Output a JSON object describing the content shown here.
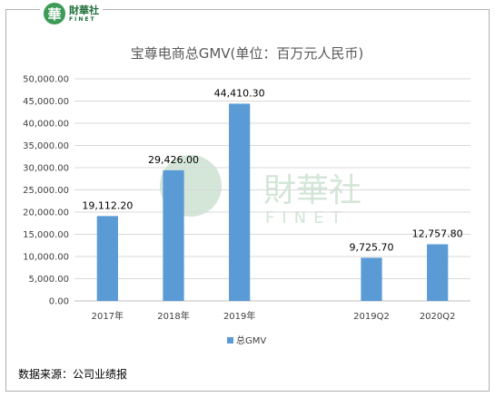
{
  "brand": {
    "glyph": "華",
    "name_cn": "財華社",
    "name_en": "FINET"
  },
  "watermark": {
    "name_cn": "財華社",
    "name_en": "FINET"
  },
  "source_note": "数据来源：公司业绩报",
  "chart_data": {
    "type": "bar",
    "title": "宝尊电商总GMV(单位：百万元人民币)",
    "categories": [
      "2017年",
      "2018年",
      "2019年",
      "",
      "2019Q2",
      "2020Q2"
    ],
    "series": [
      {
        "name": "总GMV",
        "values": [
          19112.2,
          29426.0,
          44410.3,
          null,
          9725.7,
          12757.8
        ],
        "labels": [
          "19,112.20",
          "29,426.00",
          "44,410.30",
          "",
          "9,725.70",
          "12,757.80"
        ]
      }
    ],
    "ylim": [
      0,
      50000
    ],
    "yticks": [
      "0.00",
      "5,000.00",
      "10,000.00",
      "15,000.00",
      "20,000.00",
      "25,000.00",
      "30,000.00",
      "35,000.00",
      "40,000.00",
      "45,000.00",
      "50,000.00"
    ],
    "xlabel": "",
    "ylabel": "",
    "grid": true,
    "legend": "bottom-center",
    "colors": {
      "bar": "#5b9bd5",
      "grid": "#d9d9d9",
      "axis": "#bfbfbf"
    }
  }
}
